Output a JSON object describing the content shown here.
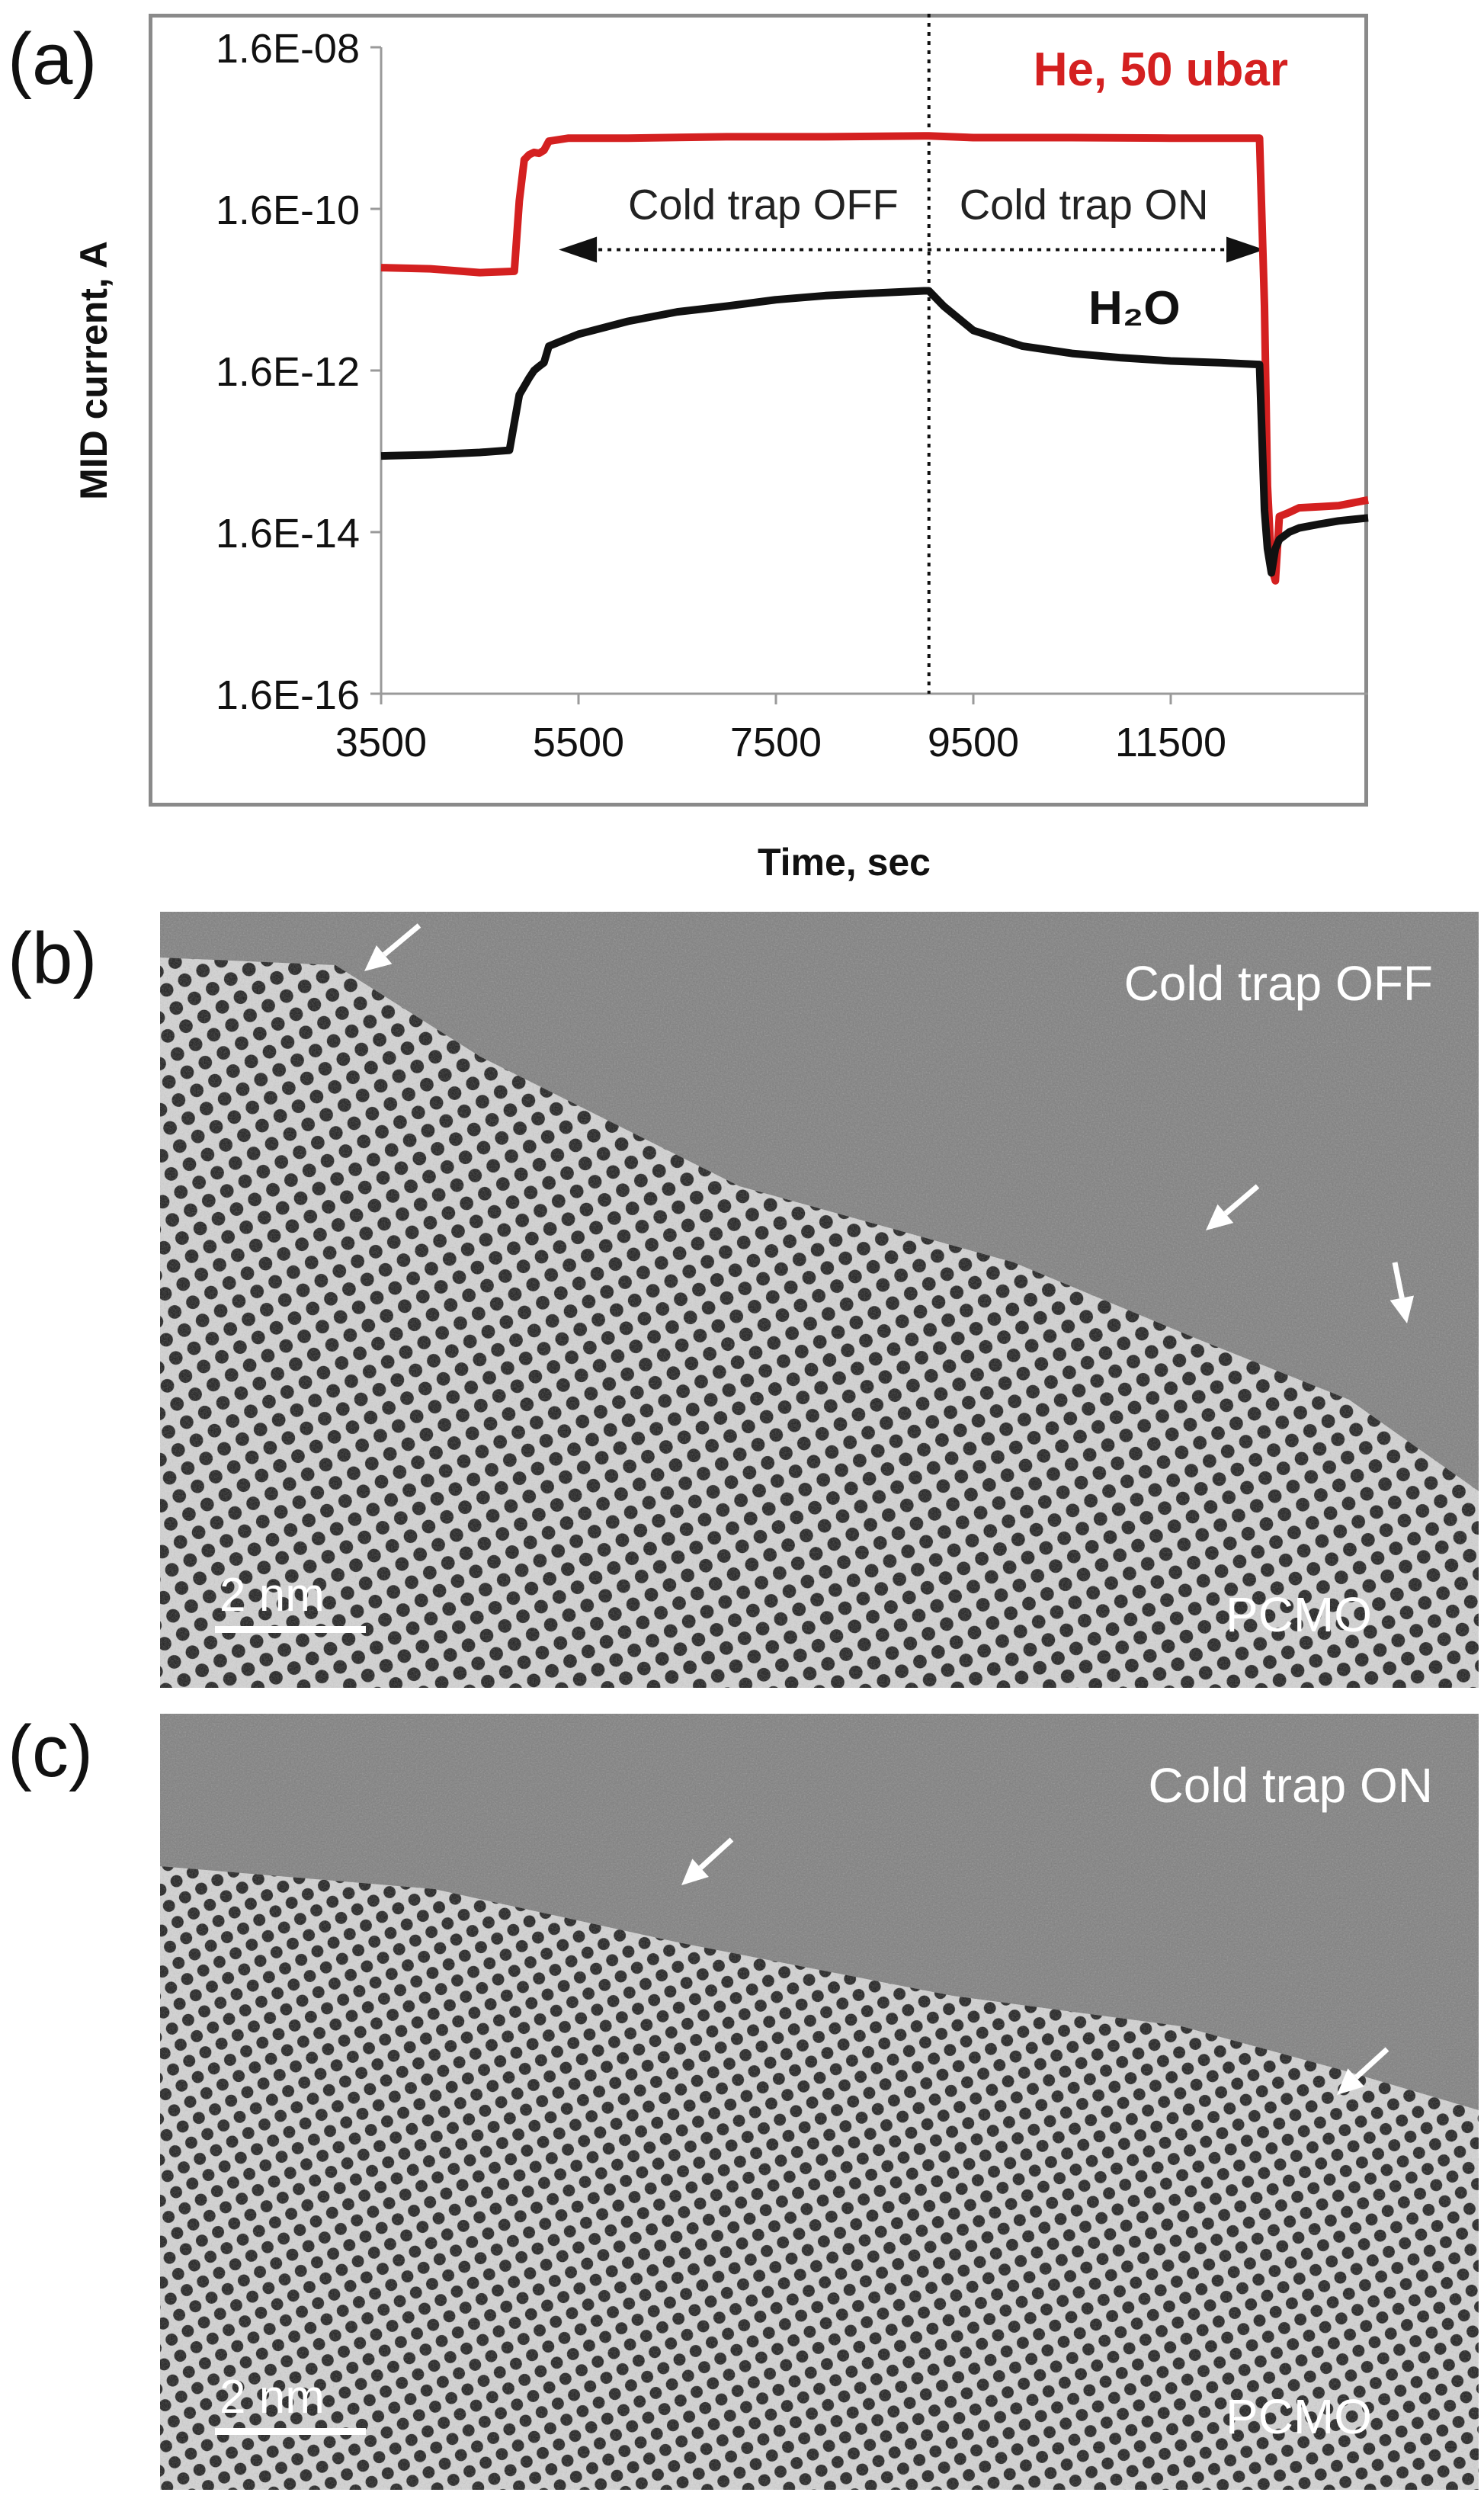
{
  "figure": {
    "panels": {
      "a": {
        "letter": "(a)"
      },
      "b": {
        "letter": "(b)",
        "label": "Cold trap OFF",
        "material": "PCMO",
        "scale": "2 nm"
      },
      "c": {
        "letter": "(c)",
        "label": "Cold trap ON",
        "material": "PCMO",
        "scale": "2 nm"
      }
    }
  },
  "chart_data": {
    "type": "line",
    "xlabel": "Time, sec",
    "ylabel": "MID current, A",
    "y_scale": "log",
    "xlim": [
      3500,
      13500
    ],
    "ylim": [
      1.6e-16,
      1.6e-08
    ],
    "x_ticks": [
      "3500",
      "5500",
      "7500",
      "9500",
      "11500"
    ],
    "y_ticks": [
      "1.6E-08",
      "1.6E-10",
      "1.6E-12",
      "1.6E-14",
      "1.6E-16"
    ],
    "annotations": {
      "off": "Cold trap OFF",
      "on": "Cold trap ON",
      "divider_x": 9050
    },
    "series": [
      {
        "name": "He, 50 ubar",
        "color": "#d42020",
        "x": [
          3500,
          4000,
          4500,
          4850,
          4900,
          4950,
          5000,
          5050,
          5100,
          5150,
          5200,
          5300,
          5400,
          6000,
          7000,
          8000,
          9000,
          9050,
          9500,
          10500,
          11500,
          12400,
          12450,
          12480,
          12520,
          12560,
          12600,
          12700,
          12800,
          13000,
          13200,
          13500
        ],
        "y": [
          3e-11,
          2.9e-11,
          2.6e-11,
          2.7e-11,
          2e-10,
          6.5e-10,
          7.5e-10,
          8e-10,
          7.8e-10,
          8.5e-10,
          1.1e-09,
          1.15e-09,
          1.2e-09,
          1.2e-09,
          1.25e-09,
          1.25e-09,
          1.28e-09,
          1.28e-09,
          1.22e-09,
          1.22e-09,
          1.2e-09,
          1.2e-09,
          1e-11,
          6e-14,
          6e-15,
          4e-15,
          2.5e-14,
          2.8e-14,
          3.2e-14,
          3.3e-14,
          3.4e-14,
          4e-14
        ]
      },
      {
        "name": "H₂O",
        "color": "#111111",
        "x": [
          3500,
          4000,
          4500,
          4800,
          4900,
          5000,
          5050,
          5100,
          5150,
          5200,
          5300,
          5500,
          6000,
          6500,
          7000,
          7500,
          8000,
          8500,
          9000,
          9050,
          9200,
          9500,
          10000,
          10500,
          11000,
          11500,
          12000,
          12400,
          12450,
          12480,
          12520,
          12560,
          12600,
          12700,
          12800,
          13000,
          13200,
          13500
        ],
        "y": [
          1.4e-13,
          1.45e-13,
          1.55e-13,
          1.65e-13,
          8e-13,
          1.3e-12,
          1.6e-12,
          1.8e-12,
          2e-12,
          3.2e-12,
          3.6e-12,
          4.5e-12,
          6.5e-12,
          8.5e-12,
          1e-11,
          1.2e-11,
          1.35e-11,
          1.45e-11,
          1.55e-11,
          1.55e-11,
          1e-11,
          5e-12,
          3.2e-12,
          2.6e-12,
          2.3e-12,
          2.1e-12,
          2e-12,
          1.9e-12,
          3e-14,
          1e-14,
          5e-15,
          1e-14,
          1.3e-14,
          1.6e-14,
          1.8e-14,
          2e-14,
          2.2e-14,
          2.4e-14
        ]
      }
    ]
  }
}
